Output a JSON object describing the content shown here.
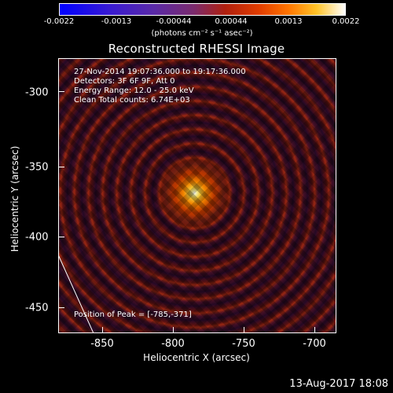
{
  "colorbar": {
    "ticks": [
      "-0.0022",
      "-0.0013",
      "-0.00044",
      "0.00044",
      "0.0013",
      "0.0022"
    ],
    "unit_label": "(photons cm⁻² s⁻¹ asec⁻²)",
    "colors": [
      "#0000ff",
      "#5a2aa7",
      "#b0200f",
      "#ff7400",
      "#ffffff"
    ]
  },
  "title": "Reconstructed RHESSI Image",
  "info_lines": [
    "27-Nov-2014 19:07:36.000 to 19:17:36.000",
    "Detectors: 3F 6F 9F, Att 0",
    "Energy Range: 12.0 - 25.0 keV",
    "Clean     Total counts: 6.74E+03"
  ],
  "peak_text": "Position of Peak = [-785,-371]",
  "axes": {
    "y_label": "Heliocentric Y (arcsec)",
    "x_label": "Heliocentric X (arcsec)",
    "y_ticks": [
      "-300",
      "-350",
      "-400",
      "-450"
    ],
    "x_ticks": [
      "-850",
      "-800",
      "-750",
      "-700"
    ]
  },
  "footer": "13-Aug-2017 18:08"
}
